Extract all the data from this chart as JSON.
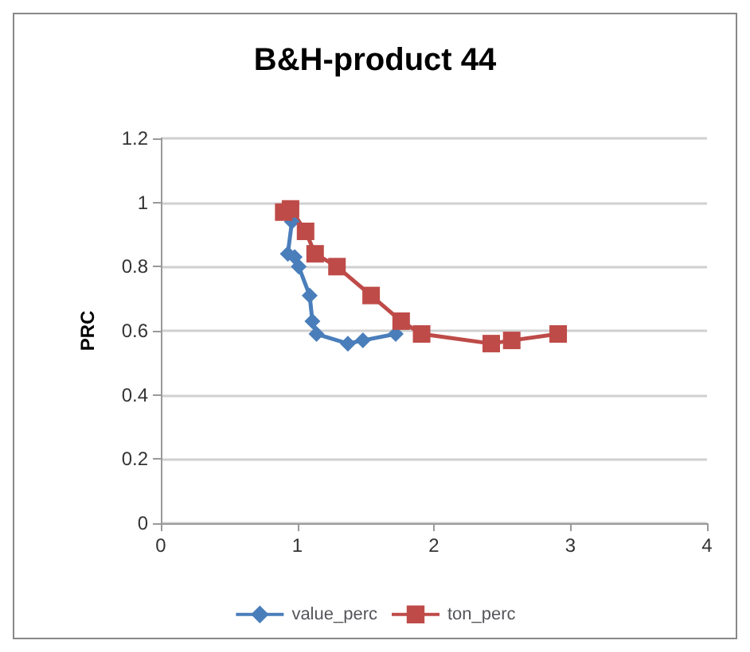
{
  "chart_data": {
    "type": "line",
    "title": "B&H-product 44",
    "ylabel": "PRC",
    "xlim": [
      0,
      4
    ],
    "xticks": [
      0,
      1,
      2,
      3,
      4
    ],
    "ylim": [
      0,
      1.2
    ],
    "yticks": [
      0,
      0.2,
      0.4,
      0.6,
      0.8,
      1,
      1.2
    ],
    "grid": "y",
    "legend": "bottom",
    "series": [
      {
        "name": "value_perc",
        "color": "#4a7ebb",
        "marker": "diamond",
        "x": [
          0.96,
          0.93,
          0.98,
          1.01,
          1.09,
          1.11,
          1.14,
          1.37,
          1.48,
          1.72
        ],
        "values": [
          0.94,
          0.84,
          0.83,
          0.8,
          0.71,
          0.63,
          0.59,
          0.56,
          0.57,
          0.59
        ]
      },
      {
        "name": "ton_perc",
        "color": "#be4b48",
        "marker": "square",
        "x": [
          0.9,
          0.95,
          1.06,
          1.13,
          1.29,
          1.54,
          1.76,
          1.91,
          2.42,
          2.57,
          2.91
        ],
        "values": [
          0.97,
          0.98,
          0.91,
          0.84,
          0.8,
          0.71,
          0.63,
          0.59,
          0.56,
          0.57,
          0.59
        ]
      }
    ]
  }
}
